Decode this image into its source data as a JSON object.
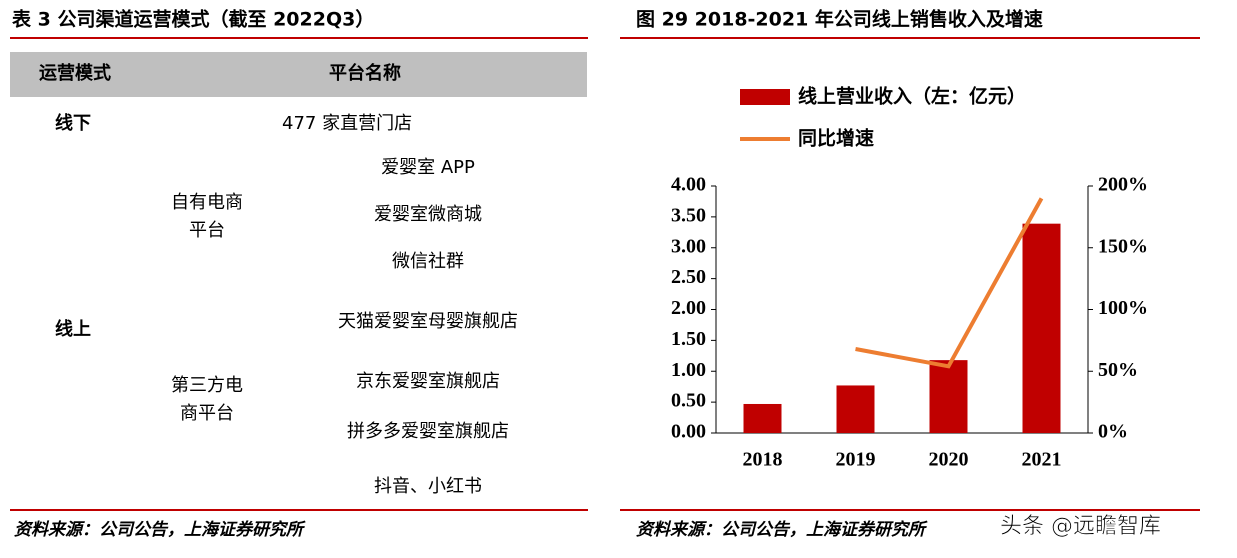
{
  "left": {
    "title": "表 3 公司渠道运营模式（截至 2022Q3）",
    "header": [
      "运营模式",
      "平台名称"
    ],
    "offline": {
      "mode": "线下",
      "platforms": [
        "477 家直营门店"
      ]
    },
    "online": {
      "mode": "线上",
      "groups": [
        {
          "name": [
            "自有电商",
            "平台"
          ],
          "platforms": [
            "爱婴室 APP",
            "爱婴室微商城",
            "微信社群"
          ]
        },
        {
          "name": [
            "第三方电",
            "商平台"
          ],
          "platforms": [
            "天猫爱婴室母婴旗舰店",
            "京东爱婴室旗舰店",
            "拼多多爱婴室旗舰店",
            "抖音、小红书"
          ]
        }
      ]
    },
    "source": "资料来源：公司公告，上海证券研究所"
  },
  "chart_data": {
    "type": "bar",
    "title": "图 29 2018-2021 年公司线上销售收入及增速",
    "categories": [
      "2018",
      "2019",
      "2020",
      "2021"
    ],
    "series": [
      {
        "name": "线上营业收入（左：亿元）",
        "color": "#c00000",
        "type": "bar",
        "values": [
          0.47,
          0.77,
          1.18,
          3.39
        ]
      },
      {
        "name": "同比增速",
        "color": "#ed7d31",
        "type": "line",
        "axis": "y2",
        "values": [
          null,
          68,
          54,
          190
        ]
      }
    ],
    "ylim": [
      0,
      4
    ],
    "yticks": [
      {
        "value": 0,
        "label": "0.00"
      },
      {
        "value": 0.5,
        "label": "0.50"
      },
      {
        "value": 1,
        "label": "1.00"
      },
      {
        "value": 1.5,
        "label": "1.50"
      },
      {
        "value": 2,
        "label": "2.00"
      },
      {
        "value": 2.5,
        "label": "2.50"
      },
      {
        "value": 3,
        "label": "3.00"
      },
      {
        "value": 3.5,
        "label": "3.50"
      },
      {
        "value": 4,
        "label": "4.00"
      }
    ],
    "y2lim": [
      0,
      200
    ],
    "y2ticks": [
      {
        "value": 0,
        "label": "0%"
      },
      {
        "value": 50,
        "label": "50%"
      },
      {
        "value": 100,
        "label": "100%"
      },
      {
        "value": 150,
        "label": "150%"
      },
      {
        "value": 200,
        "label": "200%"
      }
    ],
    "source": "资料来源：公司公告，上海证券研究所"
  },
  "watermark": "头条 @远瞻智库"
}
